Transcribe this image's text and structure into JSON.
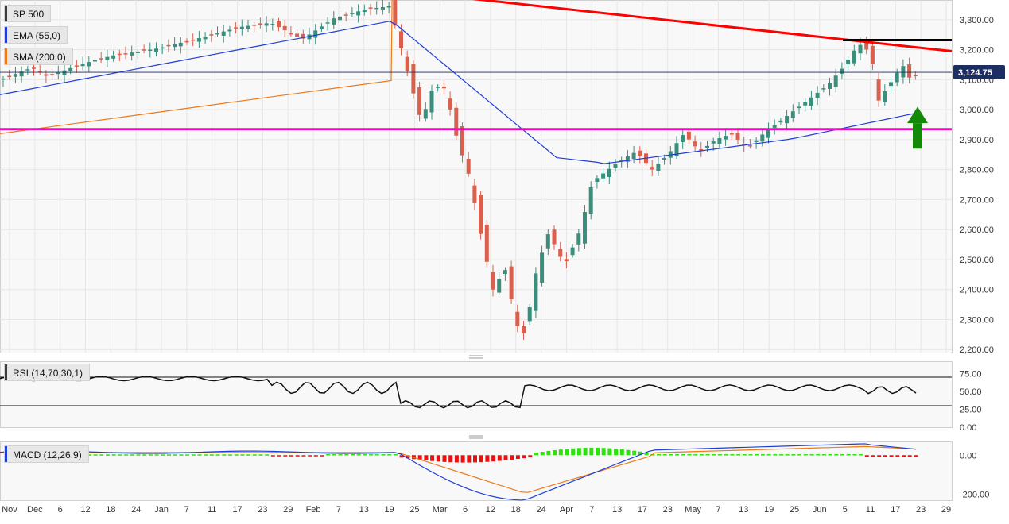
{
  "chart_data": {
    "type": "candlestick",
    "instrument": "SP 500",
    "indicators": {
      "ema": {
        "label": "EMA (55,0)",
        "color": "#1f3fd8"
      },
      "sma": {
        "label": "SMA (200,0)",
        "color": "#ee7a1a"
      },
      "rsi": {
        "label": "RSI (14,70,30,1)",
        "levels": [
          70,
          30
        ]
      },
      "macd": {
        "label": "MACD (12,26,9)"
      }
    },
    "last_price_label": "3,124.75",
    "price_axis": {
      "ylim": [
        2190,
        3350
      ],
      "ticks": [
        "3,300.00",
        "3,200.00",
        "3,100.00",
        "3,000.00",
        "2,900.00",
        "2,800.00",
        "2,700.00",
        "2,600.00",
        "2,500.00",
        "2,400.00",
        "2,300.00",
        "2,200.00"
      ]
    },
    "rsi_axis": {
      "ylim": [
        0,
        90
      ],
      "ticks": [
        "75.00",
        "50.00",
        "25.00",
        "0.00"
      ]
    },
    "macd_axis": {
      "ylim": [
        -230,
        70
      ],
      "ticks": [
        "0.00",
        "-200.00"
      ]
    },
    "x_axis": {
      "ticks": [
        "Nov",
        "Dec",
        "6",
        "12",
        "18",
        "24",
        "Jan",
        "7",
        "11",
        "17",
        "23",
        "29",
        "Feb",
        "7",
        "13",
        "19",
        "25",
        "Mar",
        "6",
        "12",
        "18",
        "24",
        "Apr",
        "7",
        "13",
        "17",
        "23",
        "May",
        "7",
        "13",
        "19",
        "25",
        "Jun",
        "5",
        "11",
        "17",
        "23",
        "29"
      ]
    },
    "annotations": {
      "resistance_trendline": {
        "color": "#ff0000",
        "from_price": 3400,
        "to_price": 3195
      },
      "support_line": {
        "price": 2935,
        "color": "#ff00cc"
      },
      "resistance_line": {
        "price": 3232,
        "color": "#000000"
      },
      "arrow": {
        "direction": "up",
        "color": "#138a07"
      }
    },
    "colors": {
      "up": "#3a8f7c",
      "down": "#d9604c",
      "bg": "#ffffff",
      "grid": "#e6e6e6"
    }
  }
}
